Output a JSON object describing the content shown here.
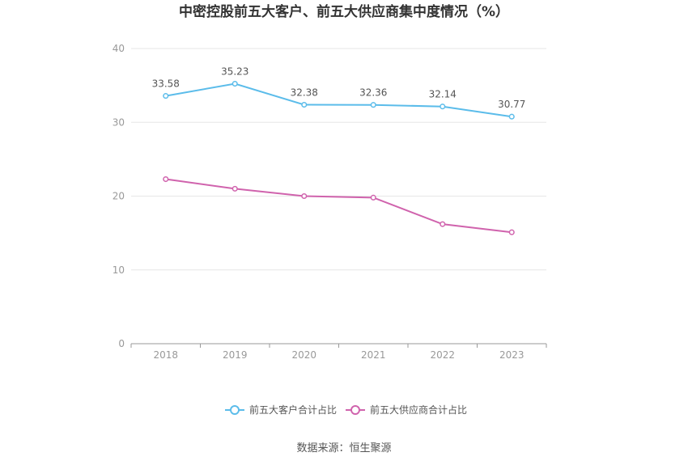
{
  "chart_data": {
    "type": "line",
    "title": "中密控股前五大客户、前五大供应商集中度情况（%）",
    "categories": [
      "2018",
      "2019",
      "2020",
      "2021",
      "2022",
      "2023"
    ],
    "ylim": [
      0,
      40
    ],
    "yticks": [
      0,
      10,
      20,
      30,
      40
    ],
    "grid": true,
    "legend_position": "bottom",
    "series": [
      {
        "name": "前五大客户合计占比",
        "values": [
          33.58,
          35.23,
          32.38,
          32.36,
          32.14,
          30.77
        ],
        "labels": [
          "33.58",
          "35.23",
          "32.38",
          "32.36",
          "32.14",
          "30.77"
        ],
        "color": "#5bbcea"
      },
      {
        "name": "前五大供应商合计占比",
        "values": [
          22.3,
          21.0,
          20.0,
          19.8,
          16.2,
          15.1
        ],
        "color": "#d063ad"
      }
    ]
  },
  "source": "数据来源：恒生聚源"
}
